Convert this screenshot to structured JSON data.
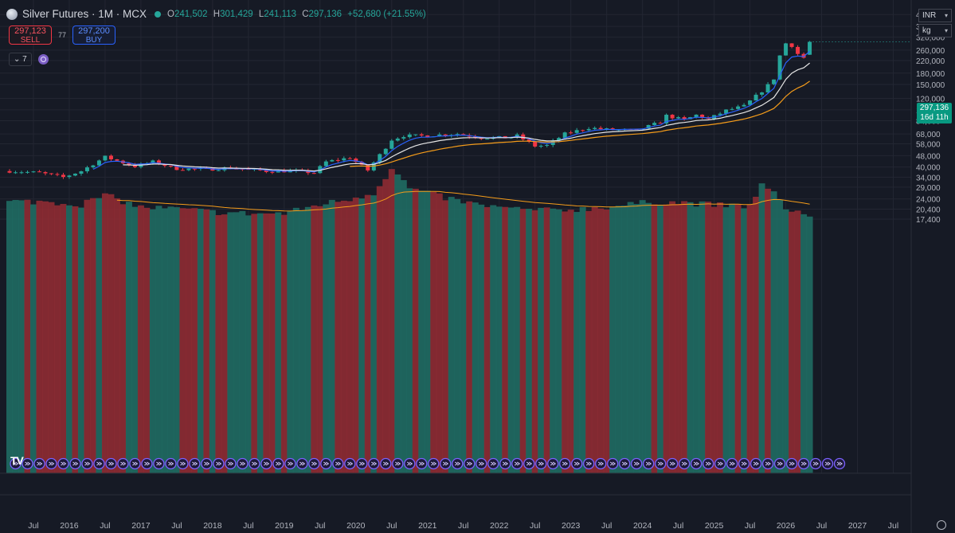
{
  "header": {
    "title": "Silver Futures · 1M · MCX",
    "ohlc": [
      {
        "label": "O",
        "value": "241,502"
      },
      {
        "label": "H",
        "value": "301,429"
      },
      {
        "label": "L",
        "value": "241,113"
      },
      {
        "label": "C",
        "value": "297,136"
      },
      {
        "label": "",
        "value": "+52,680 (+21.55%)"
      }
    ]
  },
  "trade": {
    "sell_price": "297,123",
    "sell_label": "SELL",
    "spread": "77",
    "buy_price": "297,200",
    "buy_label": "BUY"
  },
  "indicators": {
    "collapsed_count": "7"
  },
  "currency": {
    "value": "INR"
  },
  "unit": {
    "value": "kg"
  },
  "last_price": {
    "price": "297,136",
    "countdown": "16d 11h"
  },
  "colors": {
    "up": "#26a69a",
    "down": "#f23645",
    "ma_fast": "#2962ff",
    "ma_mid": "#e6e6e6",
    "ma_slow": "#f59c1a",
    "vol_ma": "#f59c1a",
    "bg": "#161a25"
  },
  "chart_data": {
    "type": "candlestick",
    "timeframe": "1M",
    "y_scale": "log",
    "y_ticks": [
      460000,
      380000,
      320000,
      260000,
      220000,
      180000,
      150000,
      120000,
      100000,
      84000,
      68000,
      58000,
      48000,
      40000,
      34000,
      29000,
      24000,
      20400,
      17400
    ],
    "y_tick_labels": [
      "460,000",
      "380,000",
      "320,000",
      "260,000",
      "220,000",
      "180,000",
      "150,000",
      "120,000",
      "100,000",
      "84,000",
      "68,000",
      "58,000",
      "48,000",
      "40,000",
      "34,000",
      "29,000",
      "24,000",
      "20,400",
      "17,400"
    ],
    "x_tick_labels": [
      {
        "label": "Jul",
        "date": "2015-07"
      },
      {
        "label": "2016",
        "date": "2016-01"
      },
      {
        "label": "Jul",
        "date": "2016-07"
      },
      {
        "label": "2017",
        "date": "2017-01"
      },
      {
        "label": "Jul",
        "date": "2017-07"
      },
      {
        "label": "2018",
        "date": "2018-01"
      },
      {
        "label": "Jul",
        "date": "2018-07"
      },
      {
        "label": "2019",
        "date": "2019-01"
      },
      {
        "label": "Jul",
        "date": "2019-07"
      },
      {
        "label": "2020",
        "date": "2020-01"
      },
      {
        "label": "Jul",
        "date": "2020-07"
      },
      {
        "label": "2021",
        "date": "2021-01"
      },
      {
        "label": "Jul",
        "date": "2021-07"
      },
      {
        "label": "2022",
        "date": "2022-01"
      },
      {
        "label": "Jul",
        "date": "2022-07"
      },
      {
        "label": "2023",
        "date": "2023-01"
      },
      {
        "label": "Jul",
        "date": "2023-07"
      },
      {
        "label": "2024",
        "date": "2024-01"
      },
      {
        "label": "Jul",
        "date": "2024-07"
      },
      {
        "label": "2025",
        "date": "2025-01"
      },
      {
        "label": "Jul",
        "date": "2025-07"
      },
      {
        "label": "2026",
        "date": "2026-01"
      },
      {
        "label": "Jul",
        "date": "2026-07"
      },
      {
        "label": "2027",
        "date": "2027-01"
      },
      {
        "label": "Jul",
        "date": "2027-07"
      }
    ],
    "x_range": [
      "2015-03",
      "2027-10"
    ],
    "price_keypoints": [
      [
        "2015-03",
        37500
      ],
      [
        "2015-08",
        36500
      ],
      [
        "2015-12",
        34000
      ],
      [
        "2016-03",
        37500
      ],
      [
        "2016-07",
        47000
      ],
      [
        "2016-12",
        40500
      ],
      [
        "2017-03",
        43500
      ],
      [
        "2017-07",
        39000
      ],
      [
        "2017-12",
        38500
      ],
      [
        "2018-04",
        39500
      ],
      [
        "2018-10",
        37500
      ],
      [
        "2019-03",
        37500
      ],
      [
        "2019-06",
        36500
      ],
      [
        "2019-08",
        43500
      ],
      [
        "2019-12",
        46500
      ],
      [
        "2020-03",
        38000
      ],
      [
        "2020-04",
        43000
      ],
      [
        "2020-07",
        62000
      ],
      [
        "2020-09",
        66000
      ],
      [
        "2020-12",
        66000
      ],
      [
        "2021-06",
        68000
      ],
      [
        "2021-10",
        64000
      ],
      [
        "2022-02",
        64000
      ],
      [
        "2022-04",
        66000
      ],
      [
        "2022-07",
        56000
      ],
      [
        "2022-09",
        56500
      ],
      [
        "2022-12",
        68000
      ],
      [
        "2023-04",
        75000
      ],
      [
        "2023-07",
        73000
      ],
      [
        "2023-12",
        72000
      ],
      [
        "2024-04",
        82000
      ],
      [
        "2024-05",
        91000
      ],
      [
        "2024-08",
        85000
      ],
      [
        "2024-10",
        92000
      ],
      [
        "2024-12",
        86000
      ],
      [
        "2025-03",
        99000
      ],
      [
        "2025-06",
        106000
      ],
      [
        "2025-09",
        135000
      ],
      [
        "2025-10",
        148000
      ],
      [
        "2025-11",
        165000
      ],
      [
        "2025-12",
        238000
      ],
      [
        "2026-01",
        290000
      ],
      [
        "2026-02",
        280000
      ],
      [
        "2026-03",
        245000
      ],
      [
        "2026-04",
        230000
      ],
      [
        "2026-05",
        297136
      ]
    ],
    "volume_keypoints": [
      [
        "2015-03",
        23000
      ],
      [
        "2015-09",
        23000
      ],
      [
        "2016-03",
        22000
      ],
      [
        "2016-07",
        25500
      ],
      [
        "2017-01",
        21000
      ],
      [
        "2017-07",
        20500
      ],
      [
        "2018-01",
        19500
      ],
      [
        "2018-07",
        19000
      ],
      [
        "2019-01",
        19000
      ],
      [
        "2019-07",
        22000
      ],
      [
        "2019-12",
        24000
      ],
      [
        "2020-04",
        26500
      ],
      [
        "2020-07",
        39000
      ],
      [
        "2020-10",
        28500
      ],
      [
        "2021-03",
        25000
      ],
      [
        "2021-09",
        22000
      ],
      [
        "2022-03",
        20500
      ],
      [
        "2022-09",
        20000
      ],
      [
        "2023-03",
        20500
      ],
      [
        "2023-09",
        21500
      ],
      [
        "2024-03",
        23000
      ],
      [
        "2024-09",
        22500
      ],
      [
        "2025-03",
        21500
      ],
      [
        "2025-07",
        21500
      ],
      [
        "2025-09",
        30000
      ],
      [
        "2025-11",
        26000
      ],
      [
        "2026-01",
        21000
      ],
      [
        "2026-05",
        18200
      ]
    ],
    "moving_averages": [
      {
        "key": "ma_fast",
        "start": "2016-05"
      },
      {
        "key": "ma_mid",
        "start": "2016-10"
      },
      {
        "key": "ma_slow",
        "start": "2019-12"
      }
    ],
    "volume_ma_start": "2016-09",
    "event_markers": {
      "start": "2015-04",
      "end": "2026-10",
      "every_months": 2
    }
  }
}
